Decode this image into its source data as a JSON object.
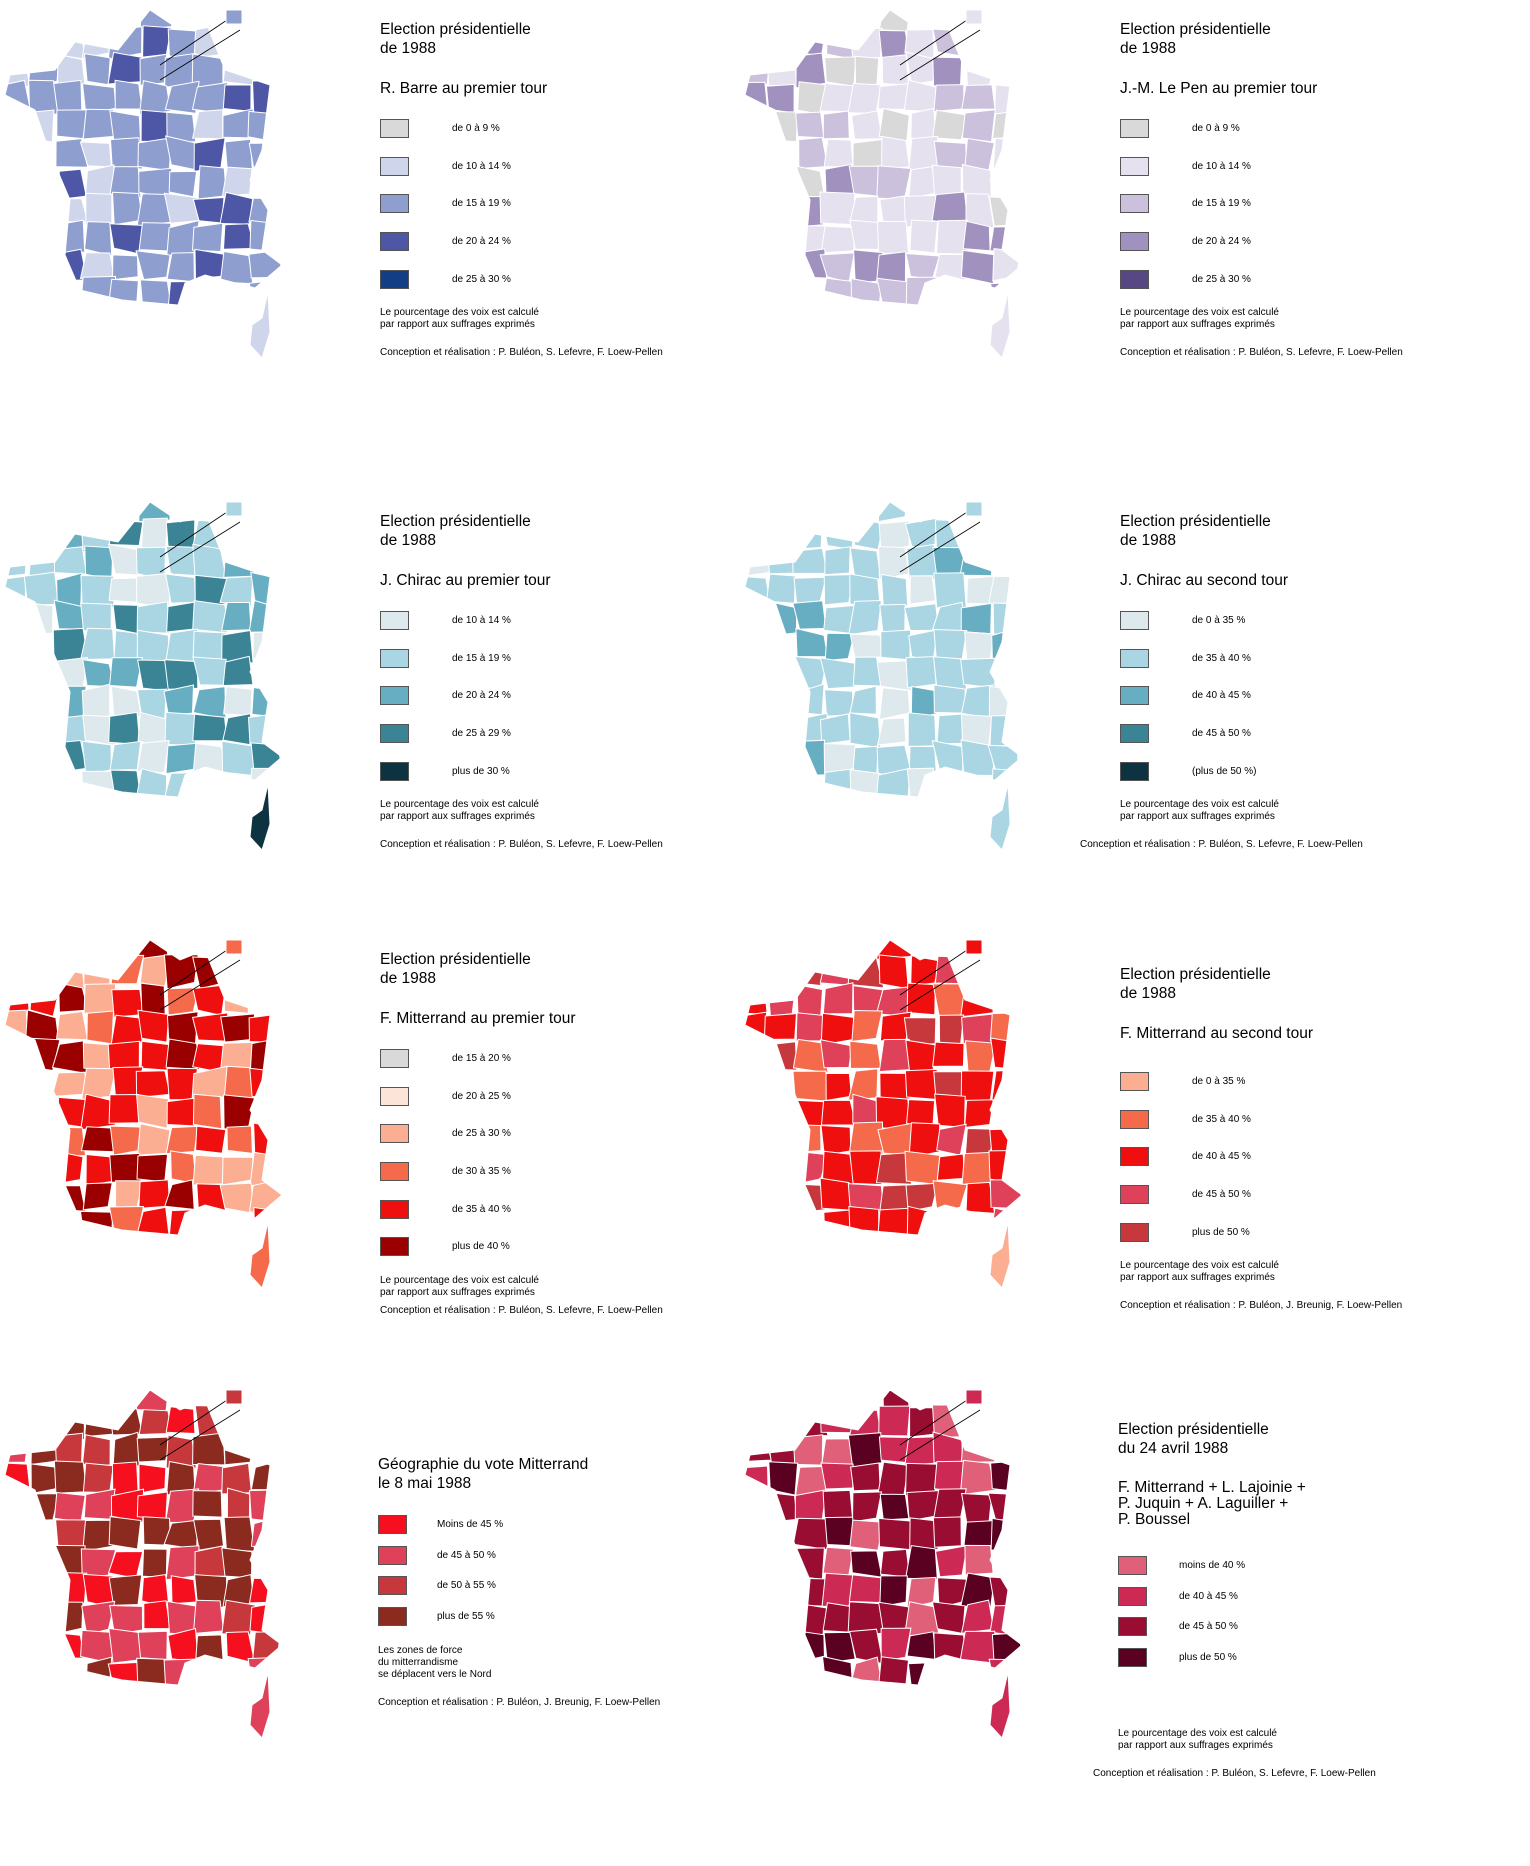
{
  "panels": [
    {
      "title": [
        "Election présidentielle",
        "de 1988"
      ],
      "subtitle": [
        "R. Barre au premier tour"
      ],
      "legend": [
        {
          "label": "de 0 à 9 %",
          "color": "#d9d9d9"
        },
        {
          "label": "de 10 à 14 %",
          "color": "#cfd6ec"
        },
        {
          "label": "de 15 à 19 %",
          "color": "#8e9fcf"
        },
        {
          "label": "de 20 à 24 %",
          "color": "#4d57a6"
        },
        {
          "label": "de 25 à 30 %",
          "color": "#123e86"
        }
      ],
      "note": [
        "Le pourcentage des voix est calculé",
        "par rapport aux suffrages exprimés"
      ],
      "credit": "Conception et réalisation : P. Buléon, S. Lefevre, F. Loew-Pellen",
      "map_palette": [
        "#cfd6ec",
        "#8e9fcf",
        "#8e9fcf",
        "#8e9fcf",
        "#4d57a6"
      ],
      "corsica_color": "#cfd6ec"
    },
    {
      "title": [
        "Election présidentielle",
        "de 1988"
      ],
      "subtitle": [
        "J.-M. Le Pen au premier tour"
      ],
      "legend": [
        {
          "label": "de 0 à 9 %",
          "color": "#d9d9d9"
        },
        {
          "label": "de 10 à 14 %",
          "color": "#e6e1ef"
        },
        {
          "label": "de 15 à 19 %",
          "color": "#cbc1dc"
        },
        {
          "label": "de 20 à 24 %",
          "color": "#a191bf"
        },
        {
          "label": "de 25 à 30 %",
          "color": "#574782"
        }
      ],
      "note": [
        "Le pourcentage des voix est calculé",
        "par rapport aux suffrages exprimés"
      ],
      "credit": "Conception et réalisation : P. Buléon, S. Lefevre, F. Loew-Pellen",
      "map_palette": [
        "#d9d9d9",
        "#e6e1ef",
        "#e6e1ef",
        "#cbc1dc",
        "#a191bf"
      ],
      "corsica_color": "#e6e1ef"
    },
    {
      "title": [
        "Election présidentielle",
        "de 1988"
      ],
      "subtitle": [
        "J. Chirac au premier tour"
      ],
      "legend": [
        {
          "label": "de 10 à 14 %",
          "color": "#dde9ed"
        },
        {
          "label": "de 15 à 19 %",
          "color": "#aad5e2"
        },
        {
          "label": "de 20 à 24 %",
          "color": "#68aec3"
        },
        {
          "label": "de 25 à 29 %",
          "color": "#3a8496"
        },
        {
          "label": "plus de 30 %",
          "color": "#0e3340"
        }
      ],
      "note": [
        "Le pourcentage des voix est calculé",
        "par rapport aux suffrages exprimés"
      ],
      "credit": "Conception et réalisation : P. Buléon, S. Lefevre, F. Loew-Pellen",
      "map_palette": [
        "#dde9ed",
        "#aad5e2",
        "#aad5e2",
        "#68aec3",
        "#3a8496"
      ],
      "corsica_color": "#0e3340"
    },
    {
      "title": [
        "Election présidentielle",
        "de 1988"
      ],
      "subtitle": [
        "J. Chirac au second tour"
      ],
      "legend": [
        {
          "label": "de 0 à 35 %",
          "color": "#dde9ed"
        },
        {
          "label": "de 35 à 40 %",
          "color": "#aad5e2"
        },
        {
          "label": "de 40 à 45 %",
          "color": "#68aec3"
        },
        {
          "label": "de 45 à 50 %",
          "color": "#3a8496"
        },
        {
          "label": "(plus de 50 %)",
          "color": "#0e3340"
        }
      ],
      "note": [
        "Le pourcentage des voix est calculé",
        "par rapport aux suffrages exprimés"
      ],
      "credit": "Conception et réalisation : P. Buléon, S. Lefevre, F. Loew-Pellen",
      "map_palette": [
        "#dde9ed",
        "#aad5e2",
        "#aad5e2",
        "#aad5e2",
        "#68aec3"
      ],
      "corsica_color": "#aad5e2"
    },
    {
      "title": [
        "Election présidentielle",
        "de 1988"
      ],
      "subtitle": [
        "F. Mitterrand au premier tour"
      ],
      "legend": [
        {
          "label": "de 15 à 20 %",
          "color": "#d9d9d9"
        },
        {
          "label": "de 20 à 25 %",
          "color": "#fde4d8"
        },
        {
          "label": "de 25 à 30 %",
          "color": "#fcae93"
        },
        {
          "label": "de 30 à 35 %",
          "color": "#f66a4c"
        },
        {
          "label": "de 35 à 40 %",
          "color": "#f00f0f"
        },
        {
          "label": "plus de 40 %",
          "color": "#9b0000"
        }
      ],
      "note": [
        "Le pourcentage des voix est calculé",
        "par rapport aux suffrages exprimés"
      ],
      "credit": "Conception et réalisation : P. Buléon, S. Lefevre, F. Loew-Pellen",
      "map_palette": [
        "#fcae93",
        "#f66a4c",
        "#f00f0f",
        "#f00f0f",
        "#9b0000"
      ],
      "corsica_color": "#f66a4c"
    },
    {
      "title": [
        "Election présidentielle",
        "de 1988"
      ],
      "subtitle": [
        "F. Mitterrand au second tour"
      ],
      "legend": [
        {
          "label": "de 0 à 35 %",
          "color": "#fcae93"
        },
        {
          "label": "de 35 à 40 %",
          "color": "#f66a4c"
        },
        {
          "label": "de 40 à 45 %",
          "color": "#f00f0f"
        },
        {
          "label": "de 45 à 50 %",
          "color": "#de4159"
        },
        {
          "label": "plus de 50 %",
          "color": "#c7383d"
        }
      ],
      "note": [
        "Le pourcentage des voix est calculé",
        "par rapport aux suffrages exprimés"
      ],
      "credit": "Conception et réalisation : P. Buléon, J. Breunig, F. Loew-Pellen",
      "map_palette": [
        "#f66a4c",
        "#f00f0f",
        "#f00f0f",
        "#de4159",
        "#c7383d"
      ],
      "corsica_color": "#fcae93"
    },
    {
      "title": [
        "Géographie du vote Mitterrand",
        "le 8 mai 1988"
      ],
      "subtitle": [],
      "legend": [
        {
          "label": "Moins de 45 %",
          "color": "#f50f1f"
        },
        {
          "label": "de 45 à 50 %",
          "color": "#de4159"
        },
        {
          "label": "de 50 à 55 %",
          "color": "#c7383d"
        },
        {
          "label": "plus de 55 %",
          "color": "#8b2a1e"
        }
      ],
      "note": [
        "Les zones de force",
        "du mitterrandisme",
        "se déplacent vers le Nord"
      ],
      "credit": "Conception et réalisation : P. Buléon, J. Breunig, F. Loew-Pellen",
      "map_palette": [
        "#de4159",
        "#c7383d",
        "#8b2a1e",
        "#8b2a1e",
        "#f50f1f"
      ],
      "corsica_color": "#de4159"
    },
    {
      "title": [
        "Election présidentielle",
        "du 24 avril 1988"
      ],
      "subtitle": [
        "F. Mitterrand + L. Lajoinie +",
        "P. Juquin + A. Laguiller +",
        "P. Boussel"
      ],
      "legend": [
        {
          "label": "moins de 40 %",
          "color": "#e0607a"
        },
        {
          "label": "de 40 à 45 %",
          "color": "#cc2a55"
        },
        {
          "label": "de 45 à 50 %",
          "color": "#9a0d33"
        },
        {
          "label": "plus de 50 %",
          "color": "#5a0020"
        }
      ],
      "note": [
        "Le pourcentage des voix est calculé",
        "par rapport aux suffrages exprimés"
      ],
      "credit": "Conception et réalisation : P. Buléon, S. Lefevre, F. Loew-Pellen",
      "map_palette": [
        "#e0607a",
        "#cc2a55",
        "#9a0d33",
        "#9a0d33",
        "#5a0020"
      ],
      "corsica_color": "#cc2a55"
    }
  ]
}
